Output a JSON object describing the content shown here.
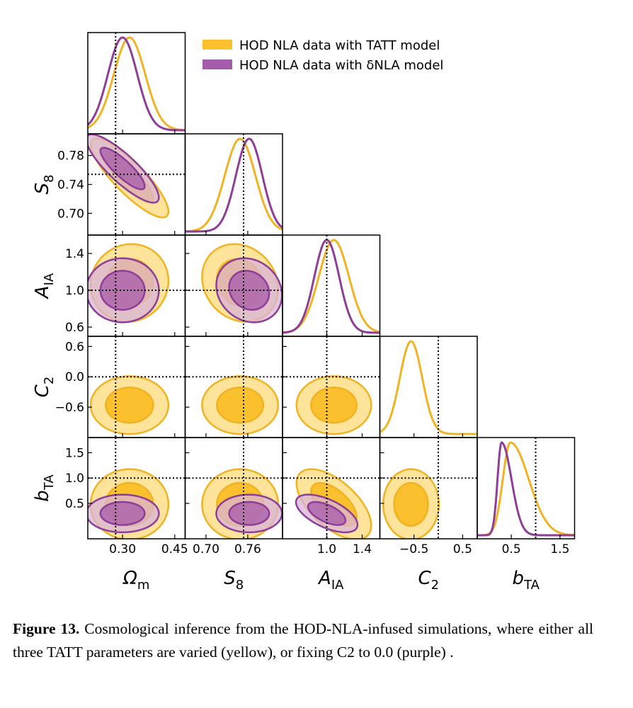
{
  "chart_data": {
    "type": "corner",
    "parameters": [
      {
        "id": "Om",
        "label": "Ωm",
        "range": [
          0.2,
          0.48
        ],
        "ticks": [
          {
            "v": 0.3,
            "t": "0.30"
          },
          {
            "v": 0.45,
            "t": "0.45"
          }
        ],
        "fiducial": 0.28
      },
      {
        "id": "S8",
        "label": "S8",
        "range": [
          0.67,
          0.81
        ],
        "ticks": [
          {
            "v": 0.7,
            "t": "0.70"
          },
          {
            "v": 0.74,
            "t": "0.74"
          },
          {
            "v": 0.78,
            "t": "0.78"
          }
        ],
        "xticks": [
          {
            "v": 0.7,
            "t": "0.70"
          },
          {
            "v": 0.76,
            "t": "0.76"
          }
        ],
        "fiducial": 0.754
      },
      {
        "id": "AIA",
        "label": "AIA",
        "range": [
          0.5,
          1.6
        ],
        "ticks": [
          {
            "v": 0.6,
            "t": "0.6"
          },
          {
            "v": 1.0,
            "t": "1.0"
          },
          {
            "v": 1.4,
            "t": "1.4"
          }
        ],
        "xticks": [
          {
            "v": 1.0,
            "t": "1.0"
          },
          {
            "v": 1.4,
            "t": "1.4"
          }
        ],
        "fiducial": 1.0
      },
      {
        "id": "C2",
        "label": "C2",
        "range": [
          -1.2,
          0.8
        ],
        "ticks": [
          {
            "v": -0.6,
            "t": "−0.6"
          },
          {
            "v": 0.0,
            "t": "0.0"
          },
          {
            "v": 0.6,
            "t": "0.6"
          }
        ],
        "xticks": [
          {
            "v": -0.5,
            "t": "−0.5"
          },
          {
            "v": 0.5,
            "t": "0.5"
          }
        ],
        "fiducial": 0.0
      },
      {
        "id": "bTA",
        "label": "bTA",
        "range": [
          -0.2,
          1.8
        ],
        "ticks": [
          {
            "v": 0.5,
            "t": "0.5"
          },
          {
            "v": 1.0,
            "t": "1.0"
          },
          {
            "v": 1.5,
            "t": "1.5"
          }
        ],
        "xticks": [
          {
            "v": 0.5,
            "t": "0.5"
          },
          {
            "v": 1.5,
            "t": "1.5"
          }
        ],
        "fiducial": 1.0
      }
    ],
    "series": [
      {
        "name": "HOD NLA data with TATT model",
        "fill": "#fbc02d",
        "stroke": "#f0b323",
        "fill_inner": "#fbc02d",
        "fill_outer": "#fde49a",
        "mean": {
          "Om": 0.32,
          "S8": 0.749,
          "AIA": 1.08,
          "C2": -0.56,
          "bTA": 0.48
        },
        "sigma": {
          "Om": 0.045,
          "S8": 0.022,
          "AIA": 0.17,
          "C2": 0.23,
          "bTA": 0.28
        },
        "corr": {
          "Om|S8": -0.85,
          "Om|AIA": 0.05,
          "S8|AIA": -0.15,
          "Om|C2": 0.0,
          "S8|C2": 0.0,
          "AIA|C2": 0.0,
          "Om|bTA": 0.0,
          "S8|bTA": 0.0,
          "AIA|bTA": -0.6,
          "C2|bTA": 0.0
        }
      },
      {
        "name": "HOD NLA data with δNLA model",
        "fill": "#9b4aa0",
        "stroke": "#8e3e96",
        "fill_inner": "#a55bab",
        "fill_outer": "#d8b4d9",
        "mean": {
          "Om": 0.3,
          "S8": 0.762,
          "AIA": 1.0,
          "bTA": 0.3
        },
        "sigma": {
          "Om": 0.042,
          "S8": 0.019,
          "AIA": 0.14,
          "bTA": 0.15
        },
        "corr": {
          "Om|S8": -0.85,
          "Om|AIA": 0.0,
          "S8|AIA": -0.15,
          "Om|bTA": 0.0,
          "S8|bTA": 0.0,
          "AIA|bTA": -0.6
        }
      }
    ]
  },
  "caption": {
    "label": "Figure 13.",
    "text": "Cosmological inference from the HOD-NLA-infused simulations, where either all three TATT parameters are varied (yellow), or fixing C2 to 0.0 (purple) ."
  }
}
